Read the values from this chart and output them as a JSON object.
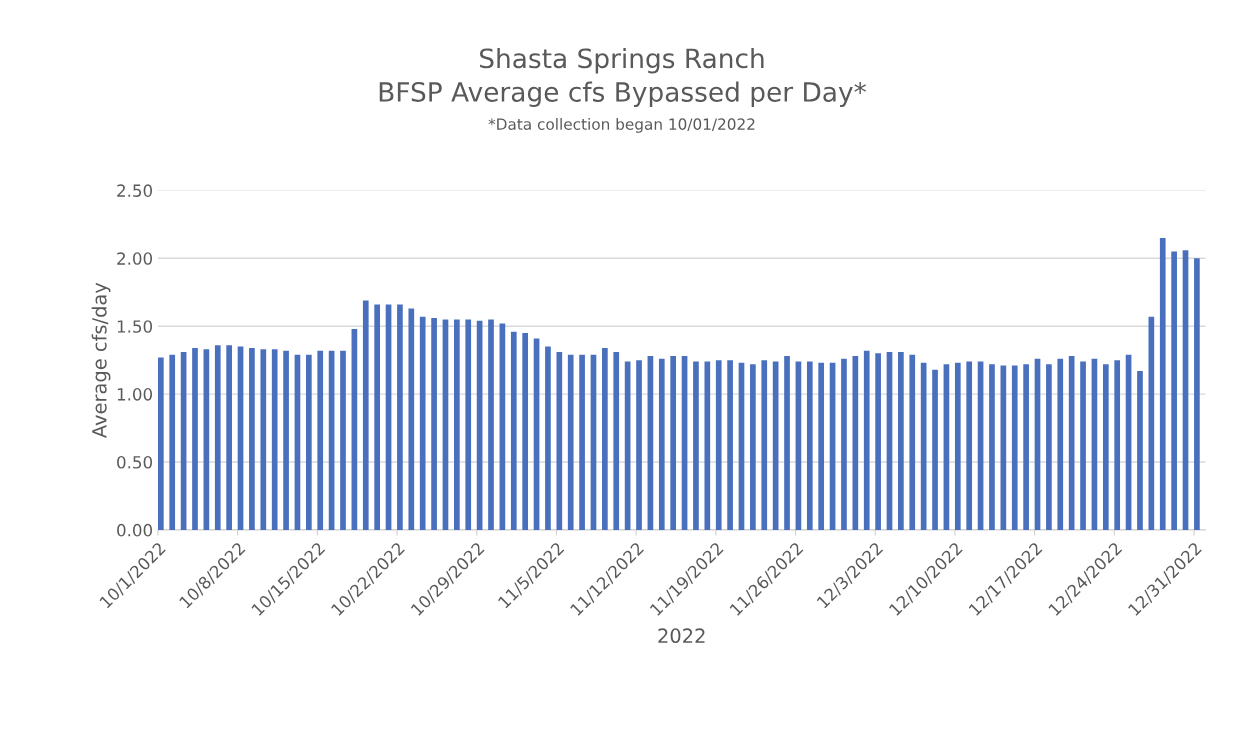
{
  "chart_data": {
    "type": "bar",
    "title": "Shasta Springs Ranch\nBFSP Average cfs Bypassed per Day*",
    "subtitle": "*Data collection began 10/01/2022",
    "xlabel": "2022",
    "ylabel": "Average cfs/day",
    "x": [
      "2022-10-01",
      "2022-10-02",
      "2022-10-03",
      "2022-10-04",
      "2022-10-05",
      "2022-10-06",
      "2022-10-07",
      "2022-10-08",
      "2022-10-09",
      "2022-10-10",
      "2022-10-11",
      "2022-10-12",
      "2022-10-13",
      "2022-10-14",
      "2022-10-15",
      "2022-10-16",
      "2022-10-17",
      "2022-10-18",
      "2022-10-19",
      "2022-10-20",
      "2022-10-21",
      "2022-10-22",
      "2022-10-23",
      "2022-10-24",
      "2022-10-25",
      "2022-10-26",
      "2022-10-27",
      "2022-10-28",
      "2022-10-29",
      "2022-10-30",
      "2022-10-31",
      "2022-11-01",
      "2022-11-02",
      "2022-11-03",
      "2022-11-04",
      "2022-11-05",
      "2022-11-06",
      "2022-11-07",
      "2022-11-08",
      "2022-11-09",
      "2022-11-10",
      "2022-11-11",
      "2022-11-12",
      "2022-11-13",
      "2022-11-14",
      "2022-11-15",
      "2022-11-16",
      "2022-11-17",
      "2022-11-18",
      "2022-11-19",
      "2022-11-20",
      "2022-11-21",
      "2022-11-22",
      "2022-11-23",
      "2022-11-24",
      "2022-11-25",
      "2022-11-26",
      "2022-11-27",
      "2022-11-28",
      "2022-11-29",
      "2022-11-30",
      "2022-12-01",
      "2022-12-02",
      "2022-12-03",
      "2022-12-04",
      "2022-12-05",
      "2022-12-06",
      "2022-12-07",
      "2022-12-08",
      "2022-12-09",
      "2022-12-10",
      "2022-12-11",
      "2022-12-12",
      "2022-12-13",
      "2022-12-14",
      "2022-12-15",
      "2022-12-16",
      "2022-12-17",
      "2022-12-18",
      "2022-12-19",
      "2022-12-20",
      "2022-12-21",
      "2022-12-22",
      "2022-12-23",
      "2022-12-24",
      "2022-12-25",
      "2022-12-26",
      "2022-12-27",
      "2022-12-28",
      "2022-12-29",
      "2022-12-30",
      "2022-12-31"
    ],
    "values": [
      1.27,
      1.29,
      1.31,
      1.34,
      1.33,
      1.36,
      1.36,
      1.35,
      1.34,
      1.33,
      1.33,
      1.32,
      1.29,
      1.29,
      1.32,
      1.32,
      1.32,
      1.48,
      1.69,
      1.66,
      1.66,
      1.66,
      1.63,
      1.57,
      1.56,
      1.55,
      1.55,
      1.55,
      1.54,
      1.55,
      1.52,
      1.46,
      1.45,
      1.41,
      1.35,
      1.31,
      1.29,
      1.29,
      1.29,
      1.34,
      1.31,
      1.24,
      1.25,
      1.28,
      1.26,
      1.28,
      1.28,
      1.24,
      1.24,
      1.25,
      1.25,
      1.23,
      1.22,
      1.25,
      1.24,
      1.28,
      1.24,
      1.24,
      1.23,
      1.23,
      1.26,
      1.28,
      1.32,
      1.3,
      1.31,
      1.31,
      1.29,
      1.23,
      1.18,
      1.22,
      1.23,
      1.24,
      1.24,
      1.22,
      1.21,
      1.21,
      1.22,
      1.26,
      1.22,
      1.26,
      1.28,
      1.24,
      1.26,
      1.22,
      1.25,
      1.29,
      1.17,
      1.57,
      2.15,
      2.05,
      2.06,
      2.0
    ],
    "color": "#4a70bd",
    "xlim": [
      "2022-10-01",
      "2023-01-01"
    ],
    "xticks": [
      {
        "value": "2022-10-01",
        "label": "10/1/2022"
      },
      {
        "value": "2022-10-08",
        "label": "10/8/2022"
      },
      {
        "value": "2022-10-15",
        "label": "10/15/2022"
      },
      {
        "value": "2022-10-22",
        "label": "10/22/2022"
      },
      {
        "value": "2022-10-29",
        "label": "10/29/2022"
      },
      {
        "value": "2022-11-05",
        "label": "11/5/2022"
      },
      {
        "value": "2022-11-12",
        "label": "11/12/2022"
      },
      {
        "value": "2022-11-19",
        "label": "11/19/2022"
      },
      {
        "value": "2022-11-26",
        "label": "11/26/2022"
      },
      {
        "value": "2022-12-03",
        "label": "12/3/2022"
      },
      {
        "value": "2022-12-10",
        "label": "12/10/2022"
      },
      {
        "value": "2022-12-17",
        "label": "12/17/2022"
      },
      {
        "value": "2022-12-24",
        "label": "12/24/2022"
      },
      {
        "value": "2022-12-31",
        "label": "12/31/2022"
      }
    ],
    "ylim": [
      0,
      2.5
    ],
    "yticks": [
      {
        "value": 0,
        "label": "0.00"
      },
      {
        "value": 0.5,
        "label": "0.50"
      },
      {
        "value": 1,
        "label": "1.00"
      },
      {
        "value": 1.5,
        "label": "1.50"
      },
      {
        "value": 2,
        "label": "2.00"
      },
      {
        "value": 2.5,
        "label": "2.50"
      }
    ],
    "grid": "y"
  }
}
